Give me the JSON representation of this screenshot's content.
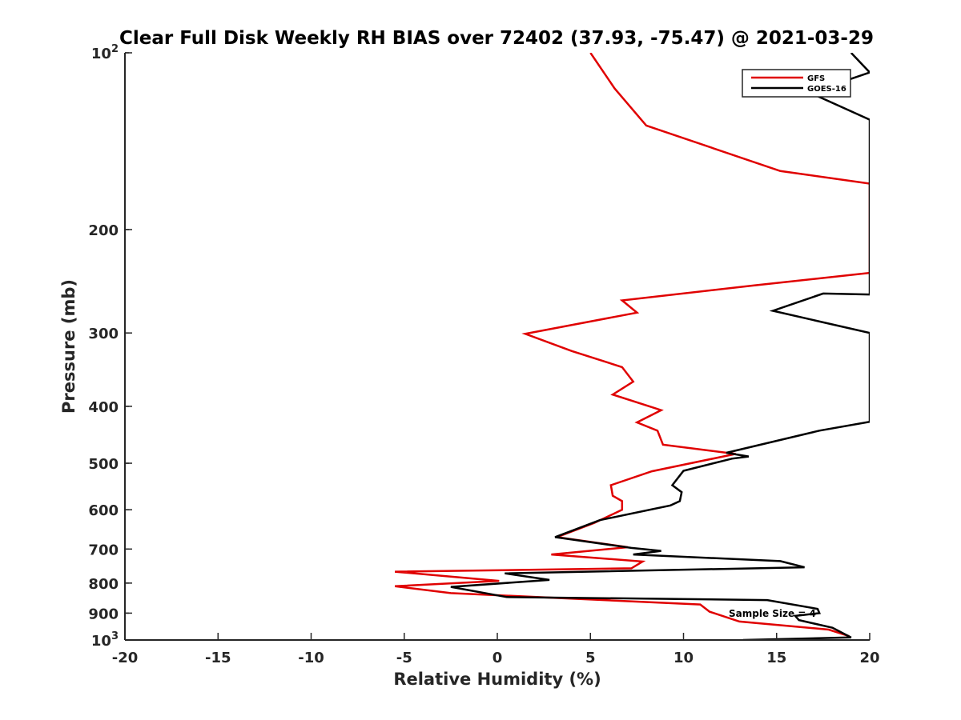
{
  "chart_data": {
    "type": "line",
    "title": "Clear Full Disk Weekly RH BIAS over 72402 (37.93, -75.47) @ 2021-03-29",
    "xlabel": "Relative Humidity (%)",
    "ylabel": "Pressure (mb)",
    "xlim": [
      -20,
      20
    ],
    "ylim": [
      100,
      1000
    ],
    "y_scale": "log",
    "y_reversed": true,
    "grid": false,
    "legend_position": "top-right",
    "x_ticks": [
      -20,
      -15,
      -10,
      -5,
      0,
      5,
      10,
      15,
      20
    ],
    "x_tick_labels": [
      "-20",
      "-15",
      "-10",
      "-5",
      "0",
      "5",
      "10",
      "15",
      "20"
    ],
    "y_ticks": [
      {
        "value": 100,
        "base": "10",
        "exp": "2"
      },
      {
        "value": 200,
        "base": "200",
        "exp": ""
      },
      {
        "value": 300,
        "base": "300",
        "exp": ""
      },
      {
        "value": 400,
        "base": "400",
        "exp": ""
      },
      {
        "value": 500,
        "base": "500",
        "exp": ""
      },
      {
        "value": 600,
        "base": "600",
        "exp": ""
      },
      {
        "value": 700,
        "base": "700",
        "exp": ""
      },
      {
        "value": 800,
        "base": "800",
        "exp": ""
      },
      {
        "value": 900,
        "base": "900",
        "exp": ""
      },
      {
        "value": 1000,
        "base": "10",
        "exp": "3"
      }
    ],
    "series": [
      {
        "name": "GFS",
        "color": "#e00000",
        "points": [
          [
            5.0,
            100
          ],
          [
            6.3,
            115
          ],
          [
            8.0,
            133
          ],
          [
            15.2,
            159
          ],
          [
            20.0,
            167
          ],
          [
            20.0,
            237
          ],
          [
            13.8,
            249
          ],
          [
            6.7,
            264
          ],
          [
            7.5,
            277
          ],
          [
            1.5,
            301
          ],
          [
            4.0,
            322
          ],
          [
            6.7,
            343
          ],
          [
            7.3,
            363
          ],
          [
            6.2,
            382
          ],
          [
            8.8,
            406
          ],
          [
            7.5,
            426
          ],
          [
            8.6,
            440
          ],
          [
            8.9,
            465
          ],
          [
            12.8,
            482
          ],
          [
            8.3,
            516
          ],
          [
            6.1,
            545
          ],
          [
            6.2,
            568
          ],
          [
            6.7,
            580
          ],
          [
            6.7,
            600
          ],
          [
            5.2,
            632
          ],
          [
            3.2,
            668
          ],
          [
            7.0,
            695
          ],
          [
            2.9,
            715
          ],
          [
            7.8,
            735
          ],
          [
            7.2,
            755
          ],
          [
            -5.5,
            765
          ],
          [
            0.1,
            793
          ],
          [
            -5.5,
            810
          ],
          [
            -2.5,
            832
          ],
          [
            10.9,
            870
          ],
          [
            11.4,
            895
          ],
          [
            13.0,
            930
          ],
          [
            17.8,
            960
          ],
          [
            18.9,
            985
          ]
        ]
      },
      {
        "name": "GOES-16",
        "color": "#000000",
        "points": [
          [
            19.0,
            100
          ],
          [
            20.0,
            108
          ],
          [
            16.8,
            117
          ],
          [
            20.0,
            130
          ],
          [
            20.0,
            258
          ],
          [
            17.5,
            257
          ],
          [
            14.8,
            275
          ],
          [
            20.0,
            300
          ],
          [
            20.0,
            425
          ],
          [
            17.3,
            440
          ],
          [
            12.3,
            480
          ],
          [
            13.5,
            487
          ],
          [
            12.6,
            491
          ],
          [
            10.0,
            515
          ],
          [
            9.4,
            545
          ],
          [
            9.9,
            560
          ],
          [
            9.8,
            580
          ],
          [
            9.3,
            590
          ],
          [
            5.5,
            625
          ],
          [
            3.1,
            668
          ],
          [
            7.2,
            697
          ],
          [
            8.8,
            705
          ],
          [
            7.3,
            715
          ],
          [
            15.2,
            734
          ],
          [
            16.5,
            752
          ],
          [
            0.4,
            770
          ],
          [
            2.8,
            790
          ],
          [
            -2.5,
            812
          ],
          [
            0.5,
            845
          ],
          [
            14.5,
            855
          ],
          [
            17.2,
            885
          ],
          [
            17.3,
            900
          ],
          [
            16.0,
            910
          ],
          [
            16.2,
            925
          ],
          [
            18.0,
            953
          ],
          [
            19.0,
            990
          ],
          [
            13.2,
            1000
          ]
        ]
      }
    ],
    "annotation": "Sample Size = 4"
  }
}
